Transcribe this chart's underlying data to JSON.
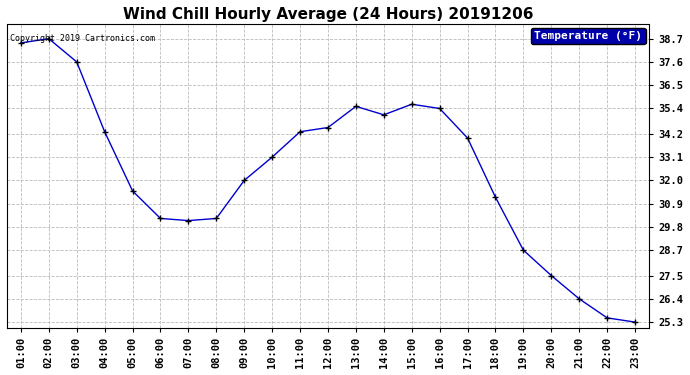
{
  "title": "Wind Chill Hourly Average (24 Hours) 20191206",
  "copyright_text": "Copyright 2019 Cartronics.com",
  "legend_label": "Temperature (°F)",
  "x_labels": [
    "01:00",
    "02:00",
    "03:00",
    "04:00",
    "05:00",
    "06:00",
    "07:00",
    "08:00",
    "09:00",
    "10:00",
    "11:00",
    "12:00",
    "13:00",
    "14:00",
    "15:00",
    "16:00",
    "17:00",
    "18:00",
    "19:00",
    "20:00",
    "21:00",
    "22:00",
    "23:00"
  ],
  "y_values": [
    38.5,
    38.7,
    37.6,
    34.3,
    31.5,
    30.2,
    30.1,
    30.2,
    32.0,
    33.1,
    34.3,
    34.5,
    35.5,
    35.1,
    35.6,
    35.4,
    34.0,
    31.2,
    28.7,
    27.5,
    26.4,
    25.5,
    25.3
  ],
  "line_color": "#0000cc",
  "marker": "+",
  "marker_color": "#000000",
  "bg_color": "#ffffff",
  "grid_color": "#bbbbbb",
  "ylim_min": 25.3,
  "ylim_max": 38.7,
  "ytick_values": [
    38.7,
    37.6,
    36.5,
    35.4,
    34.2,
    33.1,
    32.0,
    30.9,
    29.8,
    28.7,
    27.5,
    26.4,
    25.3
  ],
  "ytick_labels": [
    "38.7",
    "37.6",
    "36.5",
    "35.4",
    "34.2",
    "33.1",
    "32.0",
    "30.9",
    "29.8",
    "28.7",
    "27.5",
    "26.4",
    "25.3"
  ],
  "title_fontsize": 11,
  "tick_fontsize": 7.5,
  "legend_fontsize": 8,
  "legend_bg": "#0000aa",
  "legend_text_color": "#ffffff",
  "fig_width": 6.9,
  "fig_height": 3.75,
  "dpi": 100
}
